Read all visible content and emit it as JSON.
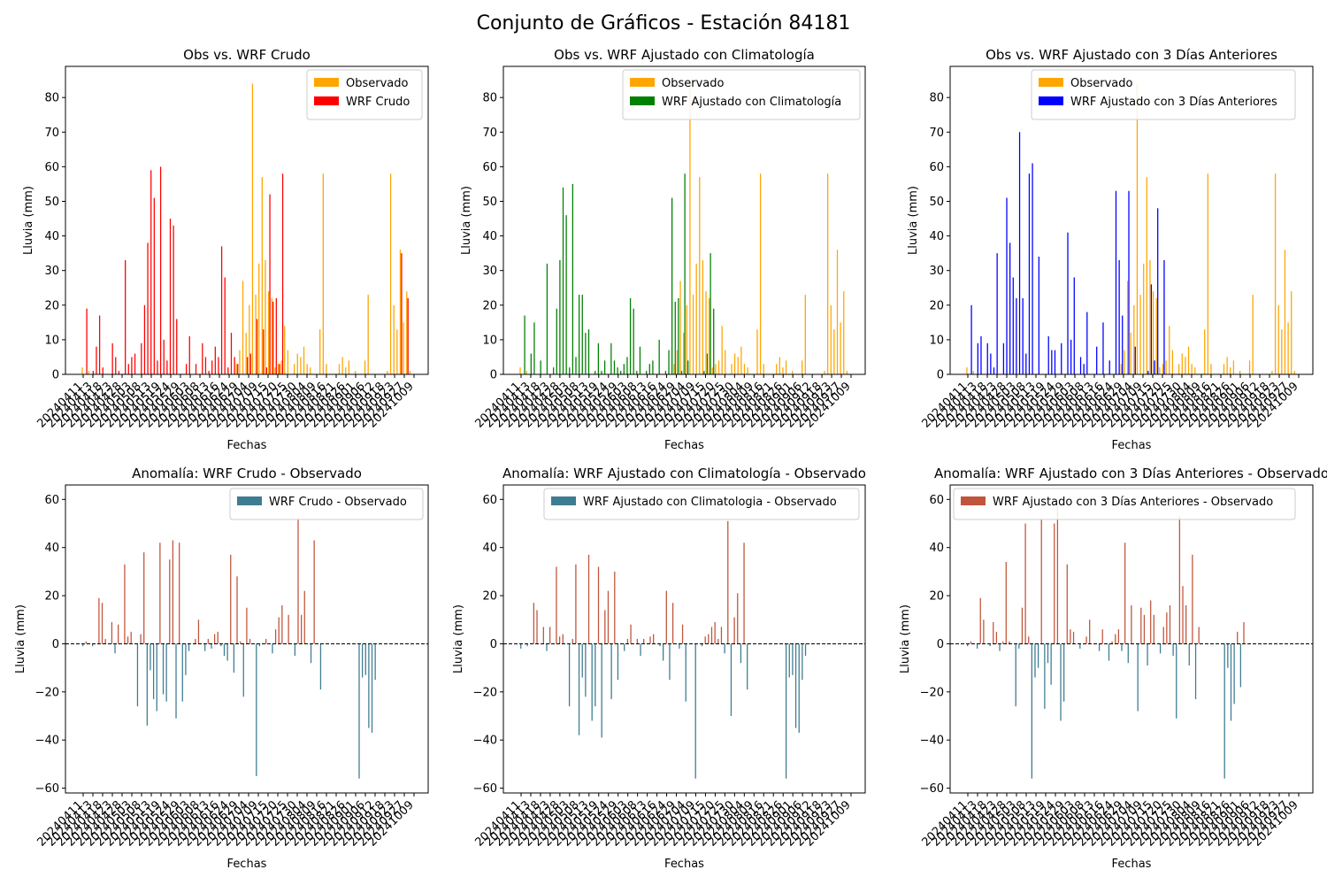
{
  "suptitle": "Conjunto de Gráficos - Estación 84181",
  "dates": [
    "20240411",
    "20240413",
    "20240418",
    "20240423",
    "20240428",
    "20240503",
    "20240508",
    "20240513",
    "20240519",
    "20240524",
    "20240529",
    "20240603",
    "20240608",
    "20240613",
    "20240616",
    "20240624",
    "20240629",
    "20240704",
    "20240709",
    "20240715",
    "20240720",
    "20240725",
    "20240730",
    "20240804",
    "20240809",
    "20240816",
    "20240821",
    "20240826",
    "20240901",
    "20240906",
    "20240912",
    "20240918",
    "20240923",
    "20240927",
    "20241009"
  ],
  "colors": {
    "observado": "#ffa500",
    "wrf_crudo": "#ff0000",
    "wrf_clim": "#008000",
    "wrf_3d": "#0000ff",
    "anom_pos": "#c1553b",
    "anom_neg": "#3e7c91"
  },
  "chart_data": [
    {
      "type": "bar",
      "title": "Obs vs. WRF Crudo",
      "xlabel": "Fechas",
      "ylabel": "Lluvia (mm)",
      "ylim": [
        0,
        89
      ],
      "yticks": [
        0,
        10,
        20,
        30,
        40,
        50,
        60,
        70,
        80
      ],
      "legend_position": "top-right",
      "series": [
        {
          "name": "Observado",
          "values": [
            2,
            0,
            1,
            0,
            0,
            0,
            0,
            0,
            0,
            0,
            0,
            0,
            0,
            0,
            0,
            0,
            0,
            0,
            0,
            0,
            0,
            0,
            0,
            0,
            0,
            0,
            0,
            0,
            0,
            0,
            0,
            0,
            0,
            0,
            0,
            0,
            0,
            0,
            0,
            0,
            0,
            0,
            0,
            0,
            0,
            0,
            0,
            0,
            3,
            7,
            27,
            12,
            20,
            84,
            23,
            32,
            57,
            33,
            24,
            22,
            2,
            3,
            4,
            14,
            7,
            0,
            3,
            6,
            5,
            8,
            3,
            2,
            0,
            0,
            13,
            58,
            3,
            0,
            0,
            0,
            3,
            5,
            2,
            4,
            0,
            1,
            0,
            0,
            4,
            23,
            0,
            0,
            0,
            0,
            0,
            1,
            58,
            20,
            13,
            36,
            15,
            24,
            1
          ]
        },
        {
          "name": "WRF Crudo",
          "values": [
            0,
            19,
            0,
            1,
            8,
            17,
            2,
            0,
            0,
            9,
            5,
            1,
            0,
            33,
            3,
            5,
            6,
            0,
            9,
            20,
            38,
            59,
            51,
            4,
            60,
            10,
            4,
            45,
            43,
            16,
            0,
            0,
            3,
            11,
            0,
            3,
            0,
            9,
            5,
            1,
            4,
            8,
            5,
            37,
            28,
            2,
            12,
            5,
            3,
            0,
            0,
            5,
            6,
            0,
            16,
            0,
            13,
            2,
            52,
            21,
            22,
            3,
            58,
            0,
            0,
            0,
            0,
            0,
            0,
            0,
            0,
            0,
            0,
            0,
            0,
            0,
            0,
            0,
            0,
            0,
            0,
            0,
            0,
            0,
            0,
            0,
            0,
            0,
            0,
            0,
            0,
            0,
            0,
            0,
            0,
            0,
            0,
            0,
            0,
            35,
            0,
            22,
            0
          ]
        }
      ]
    },
    {
      "type": "bar",
      "title": "Obs vs. WRF Ajustado con Climatología",
      "xlabel": "Fechas",
      "ylabel": "Lluvia (mm)",
      "ylim": [
        0,
        89
      ],
      "yticks": [
        0,
        10,
        20,
        30,
        40,
        50,
        60,
        70,
        80
      ],
      "legend_position": "top-right",
      "series": [
        {
          "name": "Observado",
          "values": [
            2,
            0,
            1,
            0,
            0,
            0,
            0,
            0,
            0,
            0,
            0,
            0,
            0,
            0,
            0,
            0,
            0,
            0,
            0,
            0,
            0,
            0,
            0,
            0,
            0,
            0,
            0,
            0,
            0,
            0,
            0,
            0,
            0,
            0,
            0,
            0,
            0,
            0,
            0,
            0,
            0,
            0,
            0,
            0,
            0,
            0,
            0,
            0,
            3,
            7,
            27,
            12,
            20,
            84,
            23,
            32,
            57,
            33,
            24,
            22,
            2,
            3,
            4,
            14,
            7,
            0,
            3,
            6,
            5,
            8,
            3,
            2,
            0,
            0,
            13,
            58,
            3,
            0,
            0,
            0,
            3,
            5,
            2,
            4,
            0,
            1,
            0,
            0,
            4,
            23,
            0,
            0,
            0,
            0,
            0,
            1,
            58,
            20,
            13,
            36,
            15,
            24,
            1
          ]
        },
        {
          "name": "WRF Ajustado con Climatología",
          "values": [
            0,
            17,
            0,
            6,
            15,
            0,
            4,
            0,
            32,
            0,
            2,
            19,
            33,
            54,
            46,
            2,
            55,
            5,
            23,
            23,
            12,
            13,
            0,
            1,
            9,
            1,
            4,
            0,
            9,
            4,
            2,
            1,
            3,
            5,
            22,
            19,
            1,
            8,
            0,
            1,
            3,
            4,
            0,
            10,
            0,
            1,
            7,
            51,
            21,
            22,
            1,
            58,
            4,
            0,
            0,
            0,
            0,
            1,
            6,
            35,
            19,
            0,
            0,
            0,
            0,
            0,
            0,
            0,
            0,
            0,
            0,
            0,
            0,
            0,
            0,
            0,
            0,
            0,
            0,
            0,
            0,
            0,
            0,
            0,
            0,
            0,
            0,
            0,
            0,
            0,
            0,
            0,
            0,
            0,
            0,
            0,
            0,
            0,
            0,
            0,
            0,
            0,
            0
          ]
        }
      ]
    },
    {
      "type": "bar",
      "title": "Obs vs. WRF Ajustado con 3 Días Anteriores",
      "xlabel": "Fechas",
      "ylabel": "Lluvia (mm)",
      "ylim": [
        0,
        89
      ],
      "yticks": [
        0,
        10,
        20,
        30,
        40,
        50,
        60,
        70,
        80
      ],
      "legend_position": "top-center",
      "series": [
        {
          "name": "Observado",
          "values": [
            2,
            0,
            1,
            0,
            0,
            0,
            0,
            0,
            0,
            0,
            0,
            0,
            0,
            0,
            0,
            0,
            0,
            0,
            0,
            0,
            0,
            0,
            0,
            0,
            0,
            0,
            0,
            0,
            0,
            0,
            0,
            0,
            0,
            0,
            0,
            0,
            0,
            0,
            0,
            0,
            0,
            0,
            0,
            0,
            0,
            0,
            0,
            0,
            3,
            7,
            27,
            12,
            20,
            84,
            23,
            32,
            57,
            33,
            24,
            22,
            2,
            3,
            4,
            14,
            7,
            0,
            3,
            6,
            5,
            8,
            3,
            2,
            0,
            0,
            13,
            58,
            3,
            0,
            0,
            0,
            3,
            5,
            2,
            4,
            0,
            1,
            0,
            0,
            4,
            23,
            0,
            0,
            0,
            0,
            0,
            1,
            58,
            20,
            13,
            36,
            15,
            24,
            1
          ]
        },
        {
          "name": "WRF Ajustado con 3 Días Anteriores",
          "values": [
            0,
            20,
            0,
            9,
            11,
            0,
            9,
            6,
            2,
            35,
            0,
            9,
            51,
            38,
            28,
            22,
            70,
            22,
            6,
            58,
            61,
            0,
            34,
            0,
            0,
            11,
            7,
            7,
            0,
            9,
            0,
            41,
            10,
            28,
            0,
            5,
            3,
            18,
            0,
            0,
            8,
            0,
            15,
            0,
            4,
            0,
            53,
            33,
            17,
            0,
            53,
            0,
            8,
            0,
            0,
            0,
            1,
            26,
            4,
            48,
            0,
            33,
            0,
            0,
            0,
            0,
            0,
            0,
            0,
            0,
            0,
            0,
            0,
            0,
            0,
            0,
            0,
            0,
            0,
            0,
            0,
            0,
            0,
            0,
            0,
            0,
            0,
            0,
            0,
            0,
            0,
            0,
            0,
            0,
            0,
            0,
            0,
            0,
            0,
            0,
            0,
            0,
            0
          ]
        }
      ]
    },
    {
      "type": "bar",
      "title": "Anomalía: WRF Crudo - Observado",
      "xlabel": "Fechas",
      "ylabel": "Lluvia (mm)",
      "ylim": [
        -62,
        66
      ],
      "yticks": [
        -60,
        -40,
        -20,
        0,
        20,
        40,
        60
      ],
      "legend_position": "top-right",
      "series": [
        {
          "name": "WRF Crudo - Observado",
          "values": [
            -1,
            1,
            0,
            -1,
            0,
            19,
            17,
            2,
            0,
            9,
            -4,
            8,
            0,
            33,
            3,
            5,
            0,
            -26,
            4,
            38,
            -34,
            -11,
            -23,
            -28,
            42,
            -21,
            -24,
            35,
            43,
            -31,
            42,
            -24,
            -13,
            -3,
            0,
            2,
            10,
            0,
            -3,
            2,
            -2,
            4,
            5,
            -1,
            -5,
            -7,
            37,
            -12,
            28,
            1,
            -22,
            15,
            2,
            0,
            -55,
            -1,
            0,
            2,
            0,
            -4,
            6,
            11,
            16,
            0,
            12,
            0,
            -5,
            52,
            12,
            22,
            0,
            -8,
            43,
            0,
            -19,
            0,
            0,
            0,
            0,
            0,
            0,
            0,
            0,
            0,
            0,
            0,
            -56,
            -14,
            -13,
            -35,
            -37,
            -15,
            0,
            0,
            0,
            0,
            0,
            0,
            0,
            0,
            0,
            0,
            0
          ]
        }
      ]
    },
    {
      "type": "bar",
      "title": "Anomalía: WRF Ajustado con Climatología - Observado",
      "xlabel": "Fechas",
      "ylabel": "Lluvia (mm)",
      "ylim": [
        -62,
        66
      ],
      "yticks": [
        -60,
        -40,
        -20,
        0,
        20,
        40,
        60
      ],
      "legend_position": "top-right",
      "series": [
        {
          "name": "WRF Ajustado con Climatologia - Observado",
          "values": [
            -2,
            0,
            -1,
            0,
            17,
            14,
            0,
            7,
            -3,
            7,
            0,
            32,
            3,
            4,
            0,
            -26,
            2,
            33,
            -38,
            -14,
            -22,
            37,
            -32,
            -26,
            32,
            -39,
            14,
            22,
            -23,
            30,
            -15,
            0,
            -3,
            2,
            8,
            0,
            2,
            -5,
            2,
            0,
            3,
            4,
            0,
            -1,
            -7,
            22,
            -15,
            17,
            0,
            -2,
            8,
            -24,
            0,
            0,
            -56,
            0,
            -1,
            3,
            4,
            7,
            9,
            2,
            7,
            -4,
            51,
            -30,
            11,
            21,
            -8,
            42,
            -19,
            0,
            0,
            0,
            0,
            0,
            0,
            0,
            0,
            0,
            0,
            0,
            -56,
            -14,
            -13,
            -35,
            -37,
            -15,
            -5,
            0,
            0,
            0,
            0,
            0,
            0,
            0,
            0,
            0,
            0,
            0,
            0,
            0
          ]
        }
      ]
    },
    {
      "type": "bar",
      "title": "Anomalía: WRF Ajustado con 3 Días Anteriores - Observado",
      "xlabel": "Fechas",
      "ylabel": "Lluvia (mm)",
      "ylim": [
        -62,
        66
      ],
      "yticks": [
        -60,
        -40,
        -20,
        0,
        20,
        40,
        60
      ],
      "legend_position": "top-right",
      "series": [
        {
          "name": "WRF Ajustado con 3 Días Anteriores - Observado",
          "values": [
            -1,
            1,
            0,
            -2,
            19,
            10,
            0,
            -1,
            9,
            5,
            -3,
            1,
            34,
            1,
            0,
            -26,
            -2,
            15,
            50,
            3,
            -56,
            -14,
            -10,
            52,
            -27,
            -8,
            -17,
            50,
            57,
            -32,
            -24,
            33,
            6,
            5,
            0,
            -2,
            0,
            3,
            10,
            0,
            0,
            -3,
            6,
            0,
            -7,
            1,
            4,
            6,
            -3,
            42,
            -8,
            16,
            0,
            -28,
            15,
            12,
            -9,
            18,
            12,
            0,
            -4,
            7,
            13,
            16,
            -5,
            -31,
            53,
            24,
            16,
            -9,
            37,
            -23,
            7,
            0,
            0,
            0,
            0,
            0,
            0,
            0,
            -56,
            -10,
            -32,
            -25,
            5,
            -18,
            9,
            0,
            0,
            0,
            0,
            0,
            0,
            0,
            0,
            0,
            0,
            0,
            0,
            0,
            0,
            0,
            0
          ]
        }
      ]
    }
  ]
}
